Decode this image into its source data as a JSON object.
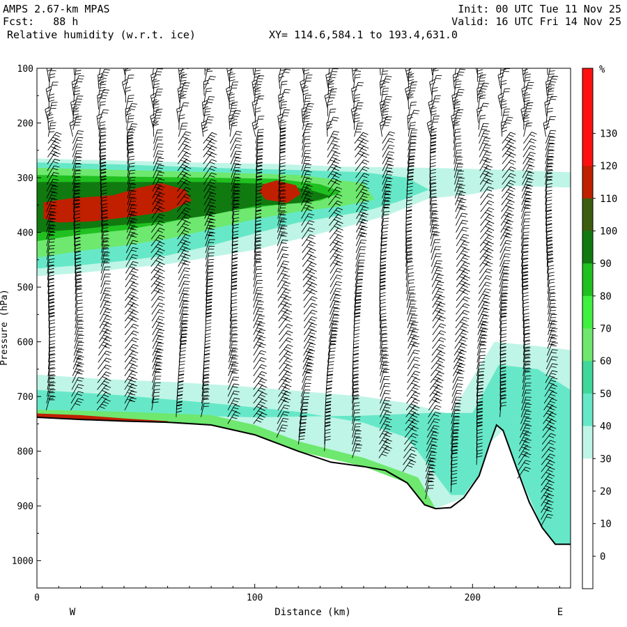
{
  "header": {
    "model": "AMPS 2.67-km MPAS",
    "forecast": "Fcst:   88 h",
    "field": "Relative humidity (w.r.t. ice)",
    "section": "XY= 114.6,584.1 to 193.4,631.0",
    "init": "Init: 00 UTC Tue 11 Nov 25",
    "valid": "Valid: 16 UTC Fri 14 Nov 25"
  },
  "chart_data": {
    "type": "contour-cross-section",
    "title": "Relative humidity (w.r.t. ice)",
    "xlabel": "Distance (km)",
    "ylabel": "Pressure (hPa)",
    "xlim": [
      0,
      245
    ],
    "ylim": [
      1050,
      100
    ],
    "x_ticks": [
      0,
      100,
      200
    ],
    "y_ticks": [
      100,
      200,
      300,
      400,
      500,
      600,
      700,
      800,
      900,
      1000
    ],
    "orientation": {
      "left": "W",
      "right": "E"
    },
    "colorbar": {
      "unit": "%",
      "levels": [
        0,
        10,
        20,
        30,
        40,
        50,
        60,
        70,
        80,
        90,
        100,
        110,
        120,
        130
      ],
      "colors": [
        "#ffffff",
        "#ffffff",
        "#ffffff",
        "#ffffff",
        "#bff5e6",
        "#66e8c8",
        "#40d89a",
        "#6ee86e",
        "#40f040",
        "#20c020",
        "#107a10",
        "#3c5c10",
        "#c02000",
        "#ff1010"
      ]
    },
    "surface_pressure": [
      [
        0,
        738
      ],
      [
        20,
        742
      ],
      [
        40,
        745
      ],
      [
        60,
        747
      ],
      [
        80,
        752
      ],
      [
        100,
        770
      ],
      [
        120,
        800
      ],
      [
        135,
        820
      ],
      [
        150,
        828
      ],
      [
        160,
        835
      ],
      [
        170,
        858
      ],
      [
        178,
        898
      ],
      [
        183,
        905
      ],
      [
        190,
        903
      ],
      [
        196,
        885
      ],
      [
        203,
        845
      ],
      [
        208,
        785
      ],
      [
        211,
        752
      ],
      [
        214,
        762
      ],
      [
        220,
        828
      ],
      [
        226,
        893
      ],
      [
        232,
        940
      ],
      [
        238,
        970
      ],
      [
        245,
        970
      ]
    ],
    "rh_regions": [
      {
        "rh": 40,
        "desc": "upper cirrus band",
        "poly": [
          [
            0,
            265
          ],
          [
            30,
            268
          ],
          [
            70,
            272
          ],
          [
            110,
            275
          ],
          [
            140,
            280
          ],
          [
            180,
            282
          ],
          [
            220,
            286
          ],
          [
            245,
            290
          ],
          [
            245,
            318
          ],
          [
            220,
            315
          ],
          [
            200,
            330
          ],
          [
            180,
            338
          ],
          [
            160,
            370
          ],
          [
            140,
            392
          ],
          [
            120,
            412
          ],
          [
            100,
            432
          ],
          [
            80,
            445
          ],
          [
            60,
            458
          ],
          [
            40,
            466
          ],
          [
            20,
            474
          ],
          [
            0,
            480
          ]
        ]
      },
      {
        "rh": 40,
        "desc": "low-level moisture",
        "poly": [
          [
            0,
            660
          ],
          [
            30,
            668
          ],
          [
            60,
            673
          ],
          [
            90,
            680
          ],
          [
            120,
            690
          ],
          [
            150,
            700
          ],
          [
            170,
            712
          ],
          [
            190,
            732
          ],
          [
            210,
            600
          ],
          [
            230,
            608
          ],
          [
            245,
            615
          ],
          [
            245,
            970
          ],
          [
            238,
            970
          ],
          [
            232,
            940
          ],
          [
            226,
            893
          ],
          [
            220,
            828
          ],
          [
            214,
            762
          ],
          [
            208,
            785
          ],
          [
            196,
            885
          ],
          [
            183,
            905
          ],
          [
            178,
            898
          ],
          [
            170,
            858
          ],
          [
            150,
            828
          ],
          [
            120,
            800
          ],
          [
            100,
            770
          ],
          [
            80,
            752
          ],
          [
            40,
            745
          ],
          [
            0,
            738
          ]
        ]
      },
      {
        "rh": 50,
        "desc": "upper band",
        "poly": [
          [
            0,
            272
          ],
          [
            40,
            276
          ],
          [
            80,
            282
          ],
          [
            120,
            286
          ],
          [
            150,
            290
          ],
          [
            170,
            300
          ],
          [
            180,
            322
          ],
          [
            165,
            345
          ],
          [
            150,
            362
          ],
          [
            120,
            382
          ],
          [
            100,
            402
          ],
          [
            80,
            424
          ],
          [
            60,
            442
          ],
          [
            40,
            452
          ],
          [
            20,
            460
          ],
          [
            0,
            466
          ]
        ]
      },
      {
        "rh": 50,
        "desc": "lower band",
        "poly": [
          [
            0,
            688
          ],
          [
            40,
            698
          ],
          [
            80,
            712
          ],
          [
            120,
            728
          ],
          [
            150,
            748
          ],
          [
            170,
            775
          ],
          [
            190,
            880
          ],
          [
            196,
            880
          ],
          [
            203,
            843
          ],
          [
            208,
            783
          ],
          [
            211,
            754
          ],
          [
            214,
            762
          ],
          [
            220,
            828
          ],
          [
            232,
            940
          ],
          [
            238,
            969
          ],
          [
            245,
            969
          ],
          [
            245,
            688
          ],
          [
            230,
            650
          ],
          [
            212,
            642
          ],
          [
            200,
            730
          ],
          [
            180,
            730
          ],
          [
            150,
            735
          ],
          [
            100,
            738
          ],
          [
            50,
            733
          ],
          [
            0,
            728
          ]
        ]
      },
      {
        "rh": 70,
        "desc": "upper band",
        "poly": [
          [
            0,
            282
          ],
          [
            40,
            286
          ],
          [
            80,
            290
          ],
          [
            120,
            295
          ],
          [
            150,
            310
          ],
          [
            155,
            340
          ],
          [
            140,
            352
          ],
          [
            120,
            362
          ],
          [
            100,
            376
          ],
          [
            80,
            394
          ],
          [
            60,
            412
          ],
          [
            40,
            424
          ],
          [
            20,
            434
          ],
          [
            0,
            446
          ]
        ]
      },
      {
        "rh": 70,
        "desc": "near-surface layer",
        "poly": [
          [
            0,
            724
          ],
          [
            40,
            728
          ],
          [
            80,
            734
          ],
          [
            100,
            752
          ],
          [
            120,
            782
          ],
          [
            150,
            812
          ],
          [
            175,
            848
          ],
          [
            183,
            905
          ],
          [
            178,
            898
          ],
          [
            170,
            858
          ],
          [
            150,
            828
          ],
          [
            120,
            800
          ],
          [
            100,
            770
          ],
          [
            80,
            752
          ],
          [
            40,
            745
          ],
          [
            0,
            738
          ]
        ]
      },
      {
        "rh": 90,
        "desc": "upper band",
        "poly": [
          [
            0,
            295
          ],
          [
            40,
            298
          ],
          [
            80,
            300
          ],
          [
            110,
            302
          ],
          [
            130,
            312
          ],
          [
            140,
            326
          ],
          [
            130,
            342
          ],
          [
            110,
            350
          ],
          [
            80,
            364
          ],
          [
            60,
            382
          ],
          [
            40,
            396
          ],
          [
            20,
            404
          ],
          [
            0,
            416
          ]
        ]
      },
      {
        "rh": 100,
        "desc": "upper band",
        "poly": [
          [
            0,
            308
          ],
          [
            40,
            308
          ],
          [
            80,
            308
          ],
          [
            110,
            312
          ],
          [
            125,
            322
          ],
          [
            135,
            334
          ],
          [
            125,
            345
          ],
          [
            100,
            352
          ],
          [
            80,
            368
          ],
          [
            60,
            380
          ],
          [
            40,
            386
          ],
          [
            20,
            394
          ],
          [
            0,
            400
          ]
        ]
      },
      {
        "rh": 120,
        "desc": "supersaturated cell W",
        "poly": [
          [
            3,
            345
          ],
          [
            15,
            338
          ],
          [
            35,
            332
          ],
          [
            47,
            318
          ],
          [
            57,
            310
          ],
          [
            68,
            322
          ],
          [
            71,
            342
          ],
          [
            60,
            362
          ],
          [
            42,
            372
          ],
          [
            25,
            380
          ],
          [
            10,
            382
          ],
          [
            3,
            375
          ]
        ]
      },
      {
        "rh": 120,
        "desc": "supersaturated cell E",
        "poly": [
          [
            104,
            312
          ],
          [
            110,
            305
          ],
          [
            119,
            314
          ],
          [
            121,
            330
          ],
          [
            115,
            346
          ],
          [
            105,
            340
          ],
          [
            102,
            325
          ]
        ]
      },
      {
        "rh": 120,
        "desc": "near-surface",
        "poly": [
          [
            0,
            731
          ],
          [
            20,
            734
          ],
          [
            40,
            740
          ],
          [
            60,
            745
          ],
          [
            60,
            747
          ],
          [
            40,
            745
          ],
          [
            20,
            742
          ],
          [
            0,
            738
          ]
        ]
      }
    ],
    "wind_profile_x": [
      5,
      17,
      29,
      41,
      53,
      65,
      77,
      89,
      100,
      111,
      122,
      134,
      146,
      158,
      170,
      181,
      192,
      203,
      213,
      223,
      234
    ]
  }
}
